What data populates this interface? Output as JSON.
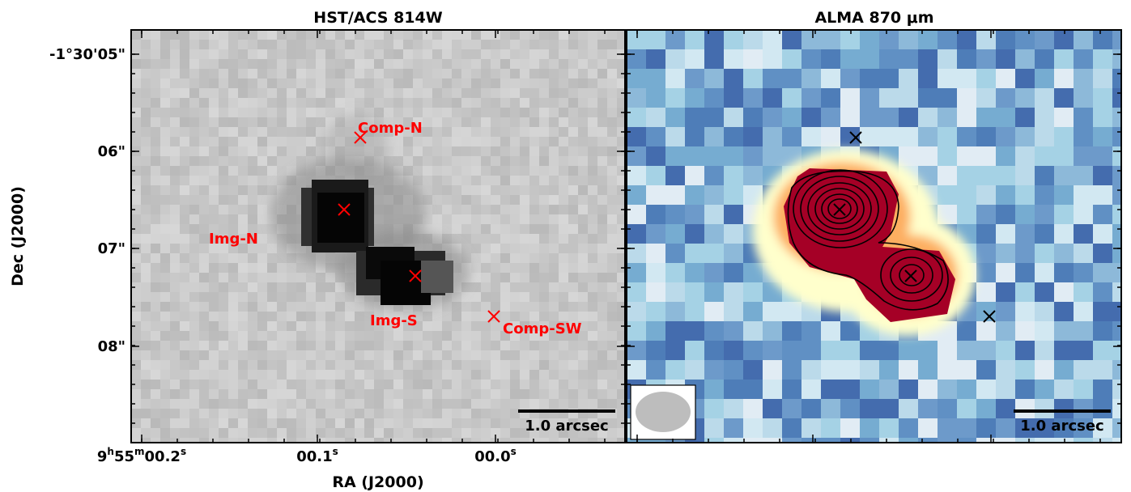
{
  "panels": {
    "left_title": "HST/ACS 814W",
    "right_title": "ALMA 870 μm"
  },
  "axes": {
    "xlabel": "RA (J2000)",
    "ylabel": "Dec (J2000)",
    "yticks": [
      "-1°30'05\"",
      "06\"",
      "07\"",
      "08\""
    ],
    "xticks": [
      {
        "main": "9",
        "sup1": "h",
        "mid": "55",
        "sup2": "m",
        "tail": "00.2",
        "sup3": "s"
      },
      {
        "main": "00.1",
        "sup3": "s"
      },
      {
        "main": "00.0",
        "sup3": "s"
      }
    ]
  },
  "markers": {
    "comp_n": "Comp-N",
    "img_n": "Img-N",
    "img_s": "Img-S",
    "comp_sw": "Comp-SW"
  },
  "scalebars": {
    "left": "1.0 arcsec",
    "right": "1.0 arcsec"
  },
  "colors": {
    "marker_red": "#ff0000",
    "dust_red": "#a50026",
    "map_blue": "#4575b4"
  }
}
